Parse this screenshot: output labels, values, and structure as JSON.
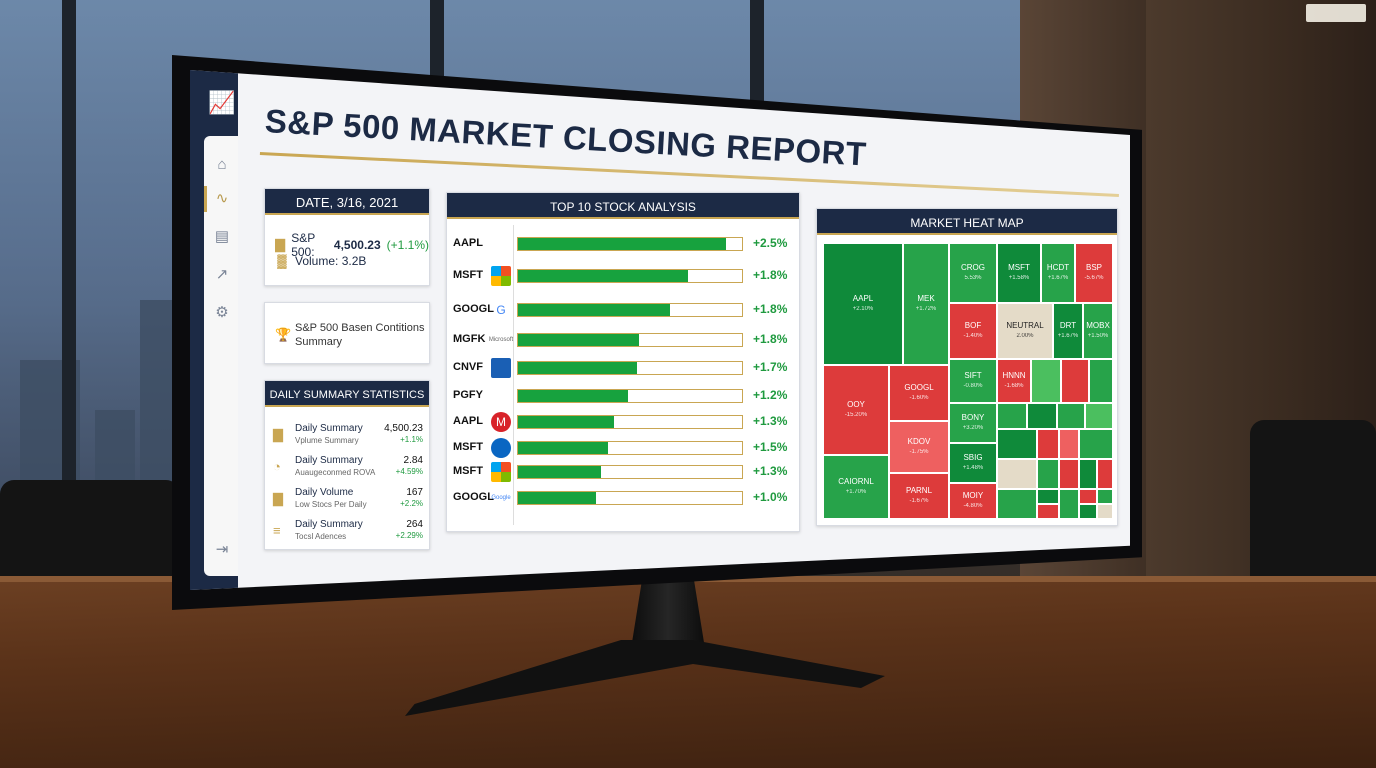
{
  "report": {
    "title": "S&P 500 MARKET CLOSING REPORT",
    "date_label": "DATE, 3/16, 2021",
    "index_label": "S&P 500:",
    "index_value": "4,500.23",
    "index_change": "(+1.1%)",
    "volume_label": "Volume: 3.2B",
    "summary_text": "S&P 500 Basen Contitions Summary"
  },
  "daily_summary": {
    "title": "DAILY SUMMARY STATISTICS",
    "rows": [
      {
        "label": "Daily Summary",
        "sub": "Vplume Summary",
        "value": "4,500.23",
        "change": "+1.1%"
      },
      {
        "label": "Daily Summary",
        "sub": "Auaugeconmed ROVA",
        "value": "2.84",
        "change": "+4.59%"
      },
      {
        "label": "Daily Volume",
        "sub": "Low Stocs Per Daily",
        "value": "167",
        "change": "+2.2%"
      },
      {
        "label": "Daily Summary",
        "sub": "Tocsl Adences",
        "value": "264",
        "change": "+2.29%"
      }
    ]
  },
  "top10": {
    "title": "TOP 10 STOCK ANALYSIS",
    "stocks": [
      {
        "ticker": "AAPL",
        "logo": "",
        "fill": 0.93,
        "pct": "+2.5%"
      },
      {
        "ticker": "MSFT",
        "logo": "",
        "fill": 0.76,
        "pct": "+1.8%"
      },
      {
        "ticker": "GOOGL",
        "logo": "G",
        "fill": 0.68,
        "pct": "+1.8%"
      },
      {
        "ticker": "MGFK",
        "logo": "Microsoft",
        "fill": 0.54,
        "pct": "+1.8%"
      },
      {
        "ticker": "CNVF",
        "logo": "",
        "fill": 0.53,
        "pct": "+1.7%"
      },
      {
        "ticker": "PGFY",
        "logo": "",
        "fill": 0.49,
        "pct": "+1.2%"
      },
      {
        "ticker": "AAPL",
        "logo": "M",
        "fill": 0.43,
        "pct": "+1.3%"
      },
      {
        "ticker": "MSFT",
        "logo": "",
        "fill": 0.4,
        "pct": "+1.5%"
      },
      {
        "ticker": "MSFT",
        "logo": "",
        "fill": 0.37,
        "pct": "+1.3%"
      },
      {
        "ticker": "GOOGL",
        "logo": "Google",
        "fill": 0.35,
        "pct": "+1.0%"
      }
    ]
  },
  "heatmap": {
    "title": "MARKET HEAT MAP",
    "cells": [
      {
        "name": "AAPL",
        "value": "+2.10%"
      },
      {
        "name": "MEK",
        "value": "+1.72%"
      },
      {
        "name": "CROG",
        "value": "5.53%"
      },
      {
        "name": "MSFT",
        "value": "+1.58%"
      },
      {
        "name": "HCDT",
        "value": "+1.67%"
      },
      {
        "name": "BSP",
        "value": "-5.67%"
      },
      {
        "name": "BOF",
        "value": "-1.40%"
      },
      {
        "name": "NEUTRAL",
        "value": "2.00%"
      },
      {
        "name": "DRT",
        "value": "+1.67%"
      },
      {
        "name": "MOBX",
        "value": "+1.50%"
      },
      {
        "name": "OOY",
        "value": "-15.20%"
      },
      {
        "name": "GOOGL",
        "value": "-1.60%"
      },
      {
        "name": "SIFT",
        "value": "-0.80%"
      },
      {
        "name": "HNNN",
        "value": "-1.68%"
      },
      {
        "name": "BONY",
        "value": "+3.20%"
      },
      {
        "name": "KDOV",
        "value": "-1.75%"
      },
      {
        "name": "SBIG",
        "value": "+1.48%"
      },
      {
        "name": "CAIORNL",
        "value": "+1.70%"
      },
      {
        "name": "PARNL",
        "value": "-1.67%"
      },
      {
        "name": "MOIY",
        "value": "-4.80%"
      }
    ]
  },
  "colors": {
    "navy": "#1c2a45",
    "gold": "#c9a652",
    "green": "#17a23e",
    "red": "#dd3b3b"
  }
}
